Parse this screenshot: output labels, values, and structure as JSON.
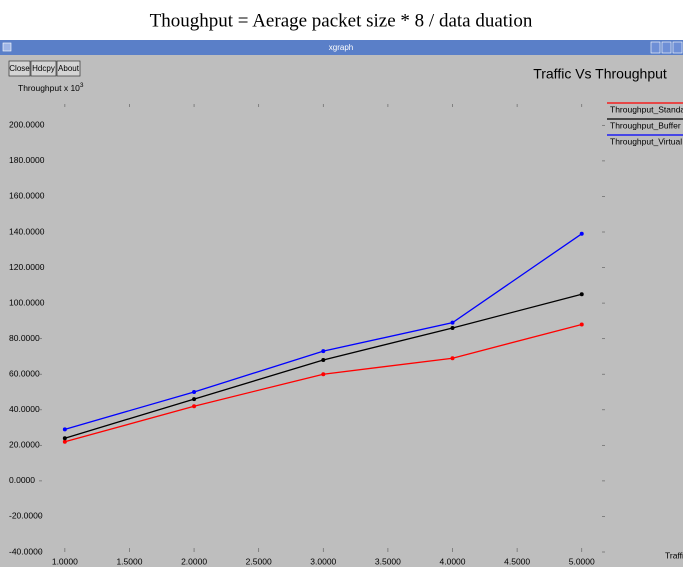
{
  "caption": "Thoughput =  Aerage packet size * 8  / data duation",
  "window": {
    "title": "xgraph",
    "buttons": [
      "Close",
      "Hdcpy",
      "About"
    ]
  },
  "chart_data": {
    "type": "line",
    "title": "Traffic Vs Throughput",
    "ylabel": "Throughput x 10",
    "ylabel_sup": "3",
    "xlabel": "Traffic",
    "x": [
      1,
      2,
      3,
      4,
      5
    ],
    "series": [
      {
        "name": "Throughput_Standard",
        "color": "#ff0000",
        "values": [
          22,
          42,
          60,
          69,
          88
        ]
      },
      {
        "name": "Throughput_Buffer",
        "color": "#000000",
        "values": [
          24,
          46,
          68,
          86,
          105
        ]
      },
      {
        "name": "Throughput_Virtual",
        "color": "#0000ff",
        "values": [
          29,
          50,
          73,
          89,
          139
        ]
      }
    ],
    "xlim": [
      0.8,
      5.18
    ],
    "ylim": [
      -40,
      212
    ],
    "xticks": [
      {
        "value": 1,
        "label": "1.0000"
      },
      {
        "value": 1.5,
        "label": "1.5000"
      },
      {
        "value": 2,
        "label": "2.0000"
      },
      {
        "value": 2.5,
        "label": "2.5000"
      },
      {
        "value": 3,
        "label": "3.0000"
      },
      {
        "value": 3.5,
        "label": "3.5000"
      },
      {
        "value": 4,
        "label": "4.0000"
      },
      {
        "value": 4.5,
        "label": "4.5000"
      },
      {
        "value": 5,
        "label": "5.0000"
      }
    ],
    "yticks": [
      {
        "value": -40,
        "label": "-40.0000"
      },
      {
        "value": -20,
        "label": "-20.0000"
      },
      {
        "value": 0,
        "label": "0.0000"
      },
      {
        "value": 20,
        "label": "20.0000"
      },
      {
        "value": 40,
        "label": "40.0000"
      },
      {
        "value": 60,
        "label": "60.0000"
      },
      {
        "value": 80,
        "label": "80.0000"
      },
      {
        "value": 100,
        "label": "100.0000"
      },
      {
        "value": 120,
        "label": "120.0000"
      },
      {
        "value": 140,
        "label": "140.0000"
      },
      {
        "value": 160,
        "label": "160.0000"
      },
      {
        "value": 180,
        "label": "180.0000"
      },
      {
        "value": 200,
        "label": "200.0000"
      }
    ]
  }
}
